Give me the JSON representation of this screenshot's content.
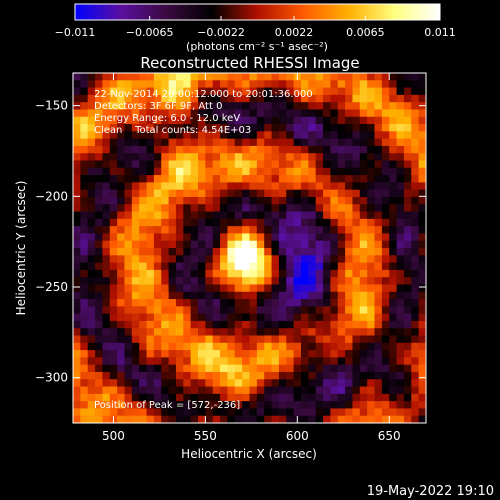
{
  "chart_data": {
    "type": "heatmap",
    "title": "Reconstructed RHESSI Image",
    "xlabel": "Heliocentric X (arcsec)",
    "ylabel": "Heliocentric Y (arcsec)",
    "xlim": [
      478,
      670
    ],
    "ylim": [
      -325,
      -132
    ],
    "x_ticks": [
      500,
      550,
      600,
      650
    ],
    "y_ticks": [
      -150,
      -200,
      -250,
      -300
    ],
    "colorbar": {
      "range": [
        -0.011,
        0.011
      ],
      "tick_values": [
        -0.011,
        -0.0065,
        -0.0022,
        0.0022,
        0.0065,
        0.011
      ],
      "tick_labels": [
        "−0.011",
        "−0.0065",
        "−0.0022",
        "0.0022",
        "0.0065",
        "0.011"
      ],
      "unit_label": "(photons cm⁻² s⁻¹ asec⁻²)",
      "colors": [
        "#0000ff",
        "#5a0fa0",
        "#3a0a40",
        "#000000",
        "#b01000",
        "#ff5a00",
        "#ffb000",
        "#ffff80",
        "#ffffff"
      ]
    },
    "peak": {
      "x": 572,
      "y": -236,
      "intensity": 0.011
    },
    "grid": false,
    "annotations": {
      "time_range": "22-Nov-2014 20:00:12.000 to 20:01:36.000",
      "detectors": "Detectors: 3F 6F 9F, Att 0",
      "energy_range": "Energy Range: 6.0 - 12.0 keV",
      "method_counts": "Clean    Total counts: 4.54E+03",
      "peak_position": "Position of Peak = [572,-236]"
    }
  },
  "footer": {
    "timestamp": "19-May-2022 19:10"
  }
}
